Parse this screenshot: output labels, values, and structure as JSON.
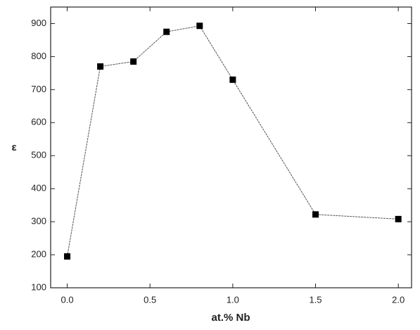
{
  "chart_data": {
    "type": "line",
    "x_label": "at.% Nb",
    "y_label": "ε",
    "x": [
      0.0,
      0.2,
      0.4,
      0.6,
      0.8,
      1.0,
      1.5,
      2.0
    ],
    "series": [
      {
        "color": "#000000",
        "values": [
          195,
          770,
          785,
          875,
          893,
          730,
          322,
          308
        ]
      }
    ],
    "xlim": [
      -0.1,
      2.08
    ],
    "ylim": [
      100,
      950
    ],
    "xticks": [
      {
        "value": 0,
        "label": "0.0"
      },
      {
        "value": 0.5,
        "label": "0.5"
      },
      {
        "value": 1,
        "label": "1.0"
      },
      {
        "value": 1.5,
        "label": "1.5"
      },
      {
        "value": 2,
        "label": "2.0"
      }
    ],
    "yticks": [
      100,
      200,
      300,
      400,
      500,
      600,
      700,
      800,
      900
    ],
    "grid": false
  }
}
